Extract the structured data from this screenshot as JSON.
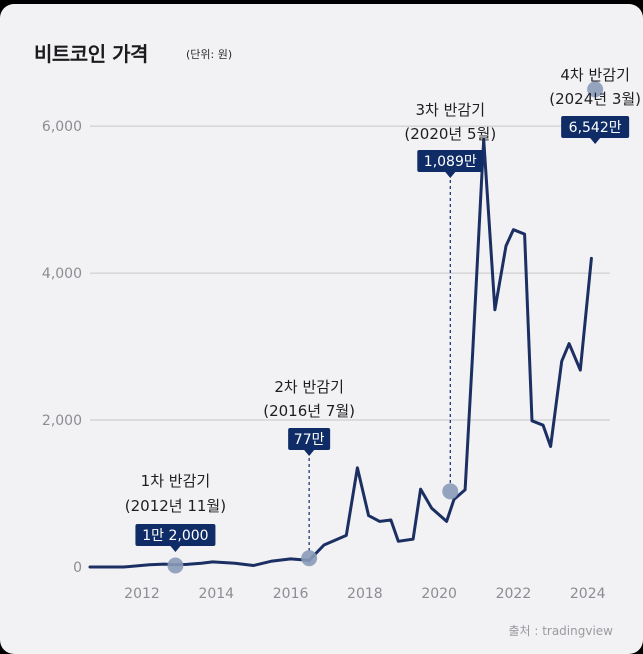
{
  "chart_data": {
    "type": "line",
    "title": "비트코인 가격",
    "unit_label": "(단위: 원)",
    "source": "출처 : tradingview",
    "line_color": "#1c2f63",
    "badge_color": "#0f2c66",
    "marker_color": "#8a9ab8",
    "grid": true,
    "xlim": [
      2010.6,
      2024.6
    ],
    "ylim": [
      0,
      6900
    ],
    "yticks": [
      0,
      2000,
      4000,
      6000
    ],
    "ytick_labels": [
      "0",
      "2,000",
      "4,000",
      "6,000"
    ],
    "xticks": [
      2012,
      2014,
      2016,
      2018,
      2020,
      2022,
      2024
    ],
    "xtick_labels": [
      "2012",
      "2014",
      "2016",
      "2018",
      "2020",
      "2022",
      "2024"
    ],
    "series": [
      {
        "x": [
          2010.6,
          2011.5,
          2012.2,
          2012.6,
          2012.9,
          2013.2,
          2013.6,
          2013.9,
          2014.5,
          2015.0,
          2015.5,
          2016.0,
          2016.5,
          2016.9,
          2017.5,
          2017.8,
          2018.1,
          2018.4,
          2018.7,
          2018.9,
          2019.3,
          2019.5,
          2019.8,
          2020.2,
          2020.4,
          2020.7,
          2020.9,
          2021.2,
          2021.5,
          2021.8,
          2022.0,
          2022.3,
          2022.5,
          2022.8,
          2023.0,
          2023.3,
          2023.5,
          2023.8,
          2024.1
        ],
        "y": [
          0,
          0,
          30,
          40,
          30,
          35,
          50,
          70,
          50,
          20,
          80,
          110,
          90,
          300,
          430,
          1350,
          700,
          620,
          640,
          350,
          380,
          1060,
          800,
          620,
          920,
          1050,
          2900,
          5820,
          3500,
          4370,
          4590,
          4530,
          1990,
          1930,
          1640,
          2800,
          3040,
          2680,
          4200
        ]
      }
    ],
    "halving_points": [
      {
        "x": 2012.9,
        "y": 20
      },
      {
        "x": 2016.5,
        "y": 120
      },
      {
        "x": 2020.3,
        "y": 1030
      },
      {
        "x": 2024.2,
        "y": 6500
      }
    ],
    "annotations": [
      {
        "line1": "1차 반감기",
        "line2": "(2012년 11월)",
        "badge": "1만 2,000"
      },
      {
        "line1": "2차 반감기",
        "line2": "(2016년 7월)",
        "badge": "77만"
      },
      {
        "line1": "3차 반감기",
        "line2": "(2020년 5월)",
        "badge": "1,089만"
      },
      {
        "line1": "4차 반감기",
        "line2": "(2024년 3월)",
        "badge": "6,542만"
      }
    ]
  }
}
